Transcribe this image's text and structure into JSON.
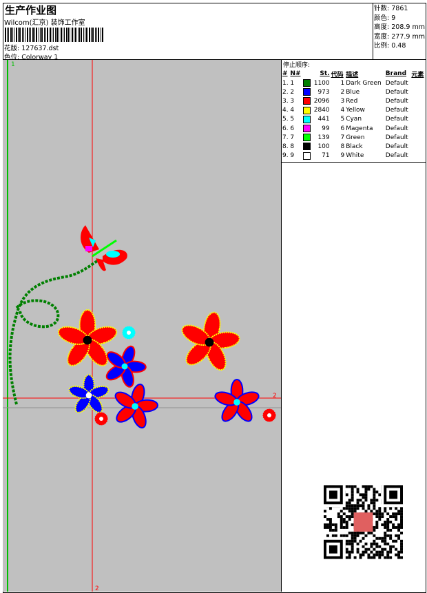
{
  "header": {
    "title": "生产作业图",
    "company": "Wilcom(汇京) 装饰工作室",
    "design_label": "花版:",
    "design_value": "127637.dst",
    "colorway_label": "色位:",
    "colorway_value": "Colorway 1"
  },
  "info": [
    {
      "label": "针数:",
      "value": "7861"
    },
    {
      "label": "颜色:",
      "value": "9"
    },
    {
      "label": "高度:",
      "value": "208.9 mm"
    },
    {
      "label": "宽度:",
      "value": "277.9 mm"
    },
    {
      "label": "比例:",
      "value": "0.48"
    }
  ],
  "stop_sequence": {
    "title": "停止顺序:",
    "columns": [
      "#",
      "N#",
      "St.",
      "代码",
      "描述",
      "Brand",
      "元素"
    ],
    "rows": [
      {
        "idx": "1.",
        "n": "1",
        "color": "#008000",
        "st": "1100",
        "code": "1",
        "desc": "Dark Green",
        "brand": "Default"
      },
      {
        "idx": "2.",
        "n": "2",
        "color": "#0000ff",
        "st": "973",
        "code": "2",
        "desc": "Blue",
        "brand": "Default"
      },
      {
        "idx": "3.",
        "n": "3",
        "color": "#ff0000",
        "st": "2096",
        "code": "3",
        "desc": "Red",
        "brand": "Default"
      },
      {
        "idx": "4.",
        "n": "4",
        "color": "#ffff00",
        "st": "2840",
        "code": "4",
        "desc": "Yellow",
        "brand": "Default"
      },
      {
        "idx": "5.",
        "n": "5",
        "color": "#00ffff",
        "st": "441",
        "code": "5",
        "desc": "Cyan",
        "brand": "Default"
      },
      {
        "idx": "6.",
        "n": "6",
        "color": "#ff00ff",
        "st": "99",
        "code": "6",
        "desc": "Magenta",
        "brand": "Default"
      },
      {
        "idx": "7.",
        "n": "7",
        "color": "#00ff00",
        "st": "139",
        "code": "7",
        "desc": "Green",
        "brand": "Default"
      },
      {
        "idx": "8.",
        "n": "8",
        "color": "#000000",
        "st": "100",
        "code": "8",
        "desc": "Black",
        "brand": "Default"
      },
      {
        "idx": "9.",
        "n": "9",
        "color": "#ffffff",
        "st": "71",
        "code": "9",
        "desc": "White",
        "brand": "Default"
      }
    ]
  },
  "design": {
    "marker_1": "1",
    "marker_2": "2"
  }
}
